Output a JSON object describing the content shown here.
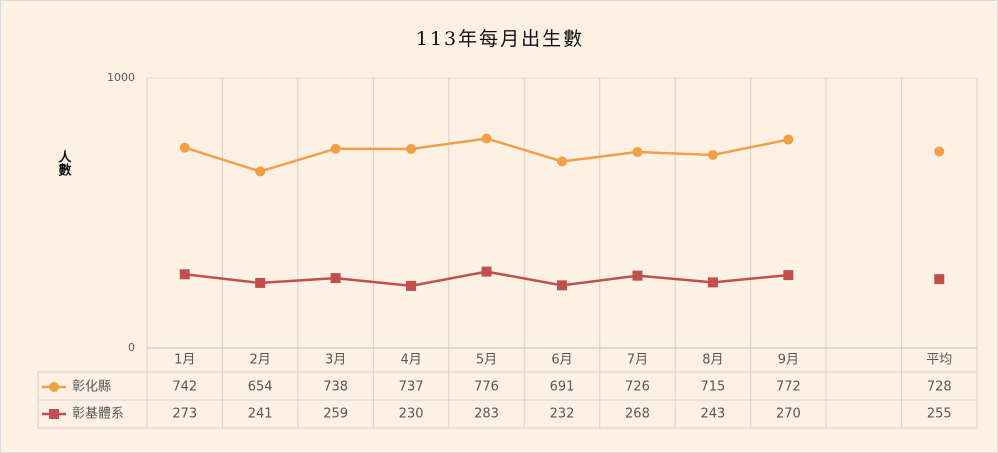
{
  "chart_data": {
    "type": "line",
    "title": "113年每月出生數",
    "y_label": "人數",
    "categories": [
      "1月",
      "2月",
      "3月",
      "4月",
      "5月",
      "6月",
      "7月",
      "8月",
      "9月",
      null,
      "平均"
    ],
    "series": [
      {
        "name": "彰化縣",
        "color": "#f2a045",
        "marker": "circle",
        "values": [
          742,
          654,
          738,
          737,
          776,
          691,
          726,
          715,
          772,
          null,
          728
        ]
      },
      {
        "name": "彰基體系",
        "color": "#c0504d",
        "marker": "square",
        "values": [
          273,
          241,
          259,
          230,
          283,
          232,
          268,
          243,
          270,
          null,
          255
        ]
      }
    ],
    "ylim": [
      0,
      1000
    ],
    "yticks": [
      0,
      1000
    ],
    "grid": true,
    "data_table": true
  }
}
